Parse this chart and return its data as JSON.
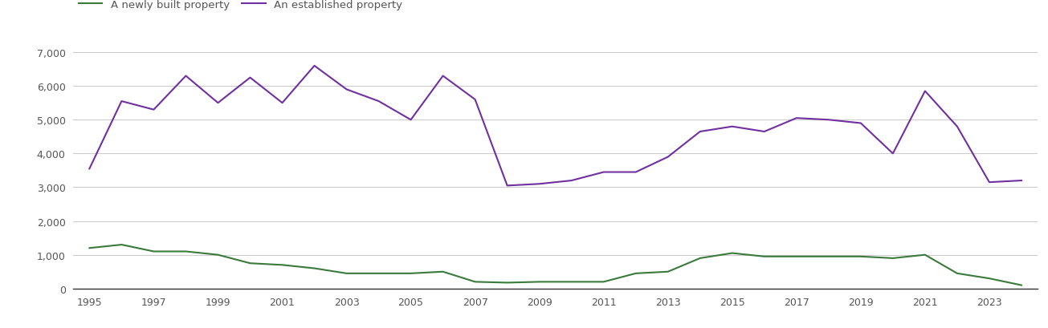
{
  "years": [
    1995,
    1996,
    1997,
    1998,
    1999,
    2000,
    2001,
    2002,
    2003,
    2004,
    2005,
    2006,
    2007,
    2008,
    2009,
    2010,
    2011,
    2012,
    2013,
    2014,
    2015,
    2016,
    2017,
    2018,
    2019,
    2020,
    2021,
    2022,
    2023,
    2024
  ],
  "new_homes": [
    1200,
    1300,
    1100,
    1100,
    1000,
    750,
    700,
    600,
    450,
    450,
    450,
    500,
    200,
    175,
    200,
    200,
    200,
    450,
    500,
    900,
    1050,
    950,
    950,
    950,
    950,
    900,
    1000,
    450,
    300,
    100
  ],
  "established_homes": [
    3550,
    5550,
    5300,
    6300,
    5500,
    6250,
    5500,
    6600,
    5900,
    5550,
    5000,
    6300,
    5600,
    3050,
    3100,
    3200,
    3450,
    3450,
    3900,
    4650,
    4800,
    4650,
    5050,
    5000,
    4900,
    4000,
    5850,
    4800,
    3150,
    3200
  ],
  "new_color": "#3a7a3a",
  "established_color": "#7030a0",
  "legend_new": "A newly built property",
  "legend_established": "An established property",
  "yticks": [
    0,
    1000,
    2000,
    3000,
    4000,
    5000,
    6000,
    7000
  ],
  "xticks": [
    1995,
    1997,
    1999,
    2001,
    2003,
    2005,
    2007,
    2009,
    2011,
    2013,
    2015,
    2017,
    2019,
    2021,
    2023
  ],
  "ylim": [
    0,
    7400
  ],
  "xlim_min": 1994.5,
  "xlim_max": 2024.5,
  "background_color": "#ffffff",
  "grid_color": "#cccccc",
  "tick_color": "#555555",
  "linewidth": 1.5
}
